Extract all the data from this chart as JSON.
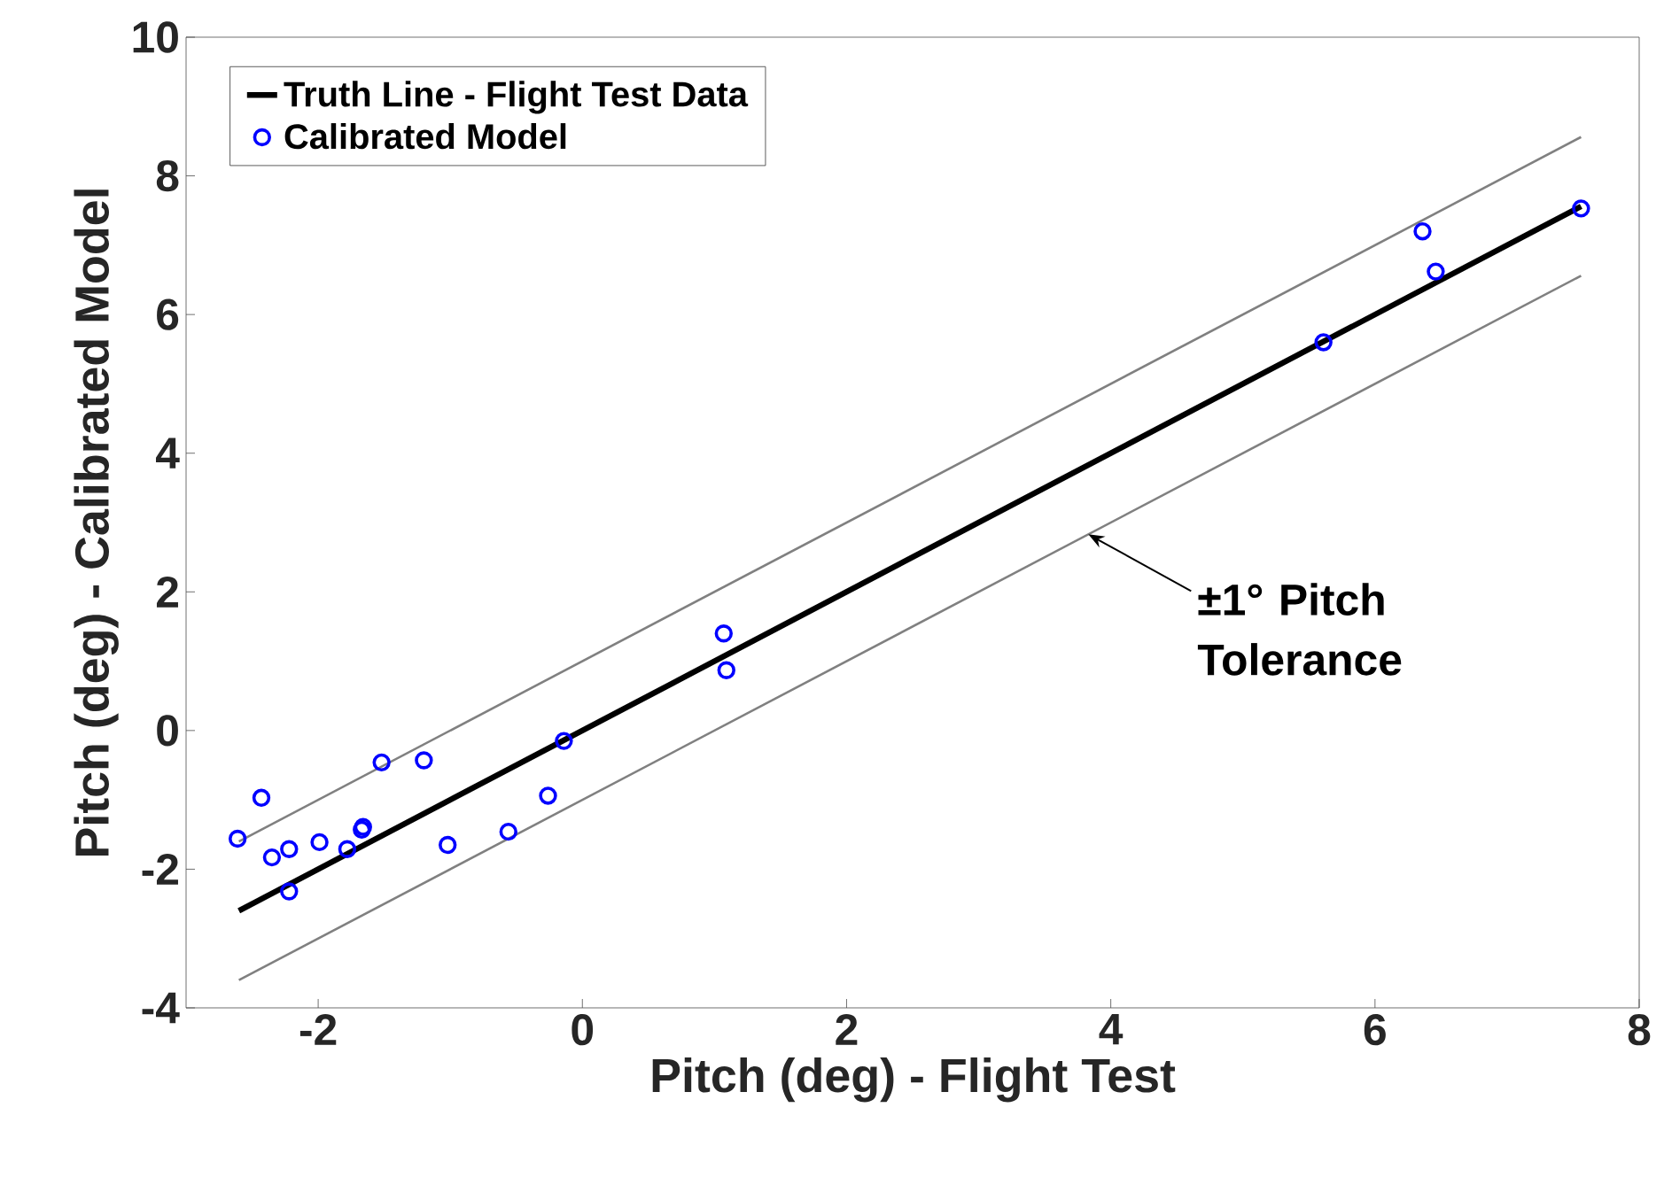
{
  "chart_data": {
    "type": "scatter",
    "xlabel": "Pitch (deg) - Flight Test",
    "ylabel": "Pitch (deg) - Calibrated Model",
    "xlim": [
      -3,
      8
    ],
    "ylim": [
      -4,
      10
    ],
    "xticks": [
      -2,
      0,
      2,
      4,
      6,
      8
    ],
    "yticks": [
      -4,
      -2,
      0,
      2,
      4,
      6,
      8,
      10
    ],
    "grid": false,
    "legend": "top left",
    "series": [
      {
        "name": "Truth Line - Flight Test Data",
        "type": "line",
        "line_style": "solid",
        "marker": "none",
        "color": "#000000",
        "x": [
          -2.6,
          7.56
        ],
        "values": [
          -2.6,
          7.56
        ]
      },
      {
        "type": "line",
        "line_style": "solid",
        "marker": "none",
        "color": "#808080",
        "x": [
          -2.6,
          7.56
        ],
        "values": [
          -1.6,
          8.56
        ]
      },
      {
        "type": "line",
        "line_style": "solid",
        "marker": "none",
        "color": "#808080",
        "x": [
          -2.6,
          7.56
        ],
        "values": [
          -3.6,
          6.56
        ]
      },
      {
        "name": "Calibrated Model",
        "marker": "circle",
        "color": "#0000ff",
        "x": [
          -2.61,
          -2.43,
          -2.35,
          -2.22,
          -2.22,
          -1.99,
          -1.78,
          -1.67,
          -1.66,
          -1.52,
          -1.2,
          -1.02,
          -0.56,
          -0.26,
          -0.14,
          1.07,
          1.09,
          5.61,
          6.36,
          6.46,
          7.56
        ],
        "values": [
          -1.56,
          -0.97,
          -1.83,
          -1.71,
          -2.32,
          -1.61,
          -1.71,
          -1.43,
          -1.39,
          -0.46,
          -0.43,
          -1.65,
          -1.46,
          -0.94,
          -0.15,
          1.4,
          0.87,
          5.6,
          7.2,
          6.62,
          7.53
        ]
      }
    ],
    "annotations": [
      {
        "text": "±1° Pitch Tolerance",
        "x": 3.83,
        "y": 2.83
      }
    ]
  }
}
